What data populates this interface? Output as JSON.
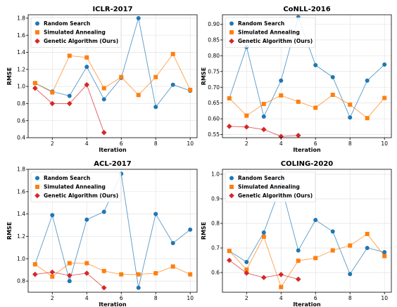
{
  "legend_location": "upper-left",
  "grid": true,
  "chart_data": [
    {
      "type": "line",
      "title": "ICLR-2017",
      "xlabel": "Iteration",
      "ylabel": "RMSE",
      "xlim": [
        0.6,
        10.4
      ],
      "ylim": [
        0.4,
        1.84
      ],
      "xticks": [
        2,
        4,
        6,
        8,
        10
      ],
      "yticks": [
        0.4,
        0.6,
        0.8,
        1.0,
        1.2,
        1.4,
        1.6,
        1.8
      ],
      "ytick_labels": [
        "0.4",
        "0.6",
        "0.8",
        "1.0",
        "1.2",
        "1.4",
        "1.6",
        "1.8"
      ],
      "series": [
        {
          "name": "Random Search",
          "color": "#1f77b4",
          "marker": "circle",
          "x": [
            1,
            2,
            3,
            4,
            5,
            6,
            7,
            8,
            9,
            10
          ],
          "values": [
            1.04,
            0.94,
            0.89,
            1.23,
            0.85,
            1.1,
            1.8,
            0.76,
            1.02,
            0.95
          ]
        },
        {
          "name": "Simulated Annealing",
          "color": "#ff7f0e",
          "marker": "square",
          "x": [
            1,
            2,
            3,
            4,
            5,
            6,
            7,
            8,
            9,
            10
          ],
          "values": [
            1.04,
            0.93,
            1.36,
            1.34,
            0.98,
            1.11,
            0.9,
            1.11,
            1.38,
            0.96
          ]
        },
        {
          "name": "Genetic Algorithm (Ours)",
          "color": "#d62728",
          "marker": "diamond",
          "x": [
            1,
            2,
            3,
            4,
            5
          ],
          "values": [
            0.98,
            0.8,
            0.8,
            1.02,
            0.46
          ]
        }
      ]
    },
    {
      "type": "line",
      "title": "CoNLL-2016",
      "xlabel": "Iteration",
      "ylabel": "RMSE",
      "xlim": [
        0.6,
        10.4
      ],
      "ylim": [
        0.54,
        0.93
      ],
      "xticks": [
        2,
        4,
        6,
        8,
        10
      ],
      "yticks": [
        0.55,
        0.6,
        0.65,
        0.7,
        0.75,
        0.8,
        0.85,
        0.9
      ],
      "ytick_labels": [
        "0.55",
        "0.60",
        "0.65",
        "0.70",
        "0.75",
        "0.80",
        "0.85",
        "0.90"
      ],
      "series": [
        {
          "name": "Random Search",
          "color": "#1f77b4",
          "marker": "circle",
          "x": [
            1,
            2,
            3,
            4,
            5,
            6,
            7,
            8,
            9,
            10
          ],
          "values": [
            0.665,
            0.828,
            0.607,
            0.721,
            0.922,
            0.77,
            0.732,
            0.604,
            0.721,
            0.772
          ]
        },
        {
          "name": "Simulated Annealing",
          "color": "#ff7f0e",
          "marker": "square",
          "x": [
            1,
            2,
            3,
            4,
            5,
            6,
            7,
            8,
            9,
            10
          ],
          "values": [
            0.665,
            0.61,
            0.647,
            0.674,
            0.654,
            0.635,
            0.676,
            0.645,
            0.602,
            0.666
          ]
        },
        {
          "name": "Genetic Algorithm (Ours)",
          "color": "#d62728",
          "marker": "diamond",
          "x": [
            1,
            2,
            3,
            4,
            5
          ],
          "values": [
            0.576,
            0.574,
            0.566,
            0.544,
            0.547
          ]
        }
      ]
    },
    {
      "type": "line",
      "title": "ACL-2017",
      "xlabel": "Iteration",
      "ylabel": "RMSE",
      "xlim": [
        0.6,
        10.4
      ],
      "ylim": [
        0.7,
        1.8
      ],
      "xticks": [
        2,
        4,
        6,
        8,
        10
      ],
      "yticks": [
        0.8,
        1.0,
        1.2,
        1.4,
        1.6,
        1.8
      ],
      "ytick_labels": [
        "0.8",
        "1.0",
        "1.2",
        "1.4",
        "1.6",
        "1.8"
      ],
      "series": [
        {
          "name": "Random Search",
          "color": "#1f77b4",
          "marker": "circle",
          "x": [
            1,
            2,
            3,
            4,
            5,
            6,
            7,
            8,
            9,
            10
          ],
          "values": [
            0.95,
            1.39,
            0.8,
            1.35,
            1.42,
            1.76,
            0.74,
            1.4,
            1.14,
            1.26
          ]
        },
        {
          "name": "Simulated Annealing",
          "color": "#ff7f0e",
          "marker": "square",
          "x": [
            1,
            2,
            3,
            4,
            5,
            6,
            7,
            8,
            9,
            10
          ],
          "values": [
            0.95,
            0.84,
            0.96,
            0.96,
            0.89,
            0.86,
            0.86,
            0.87,
            0.93,
            0.86
          ]
        },
        {
          "name": "Genetic Algorithm (Ours)",
          "color": "#d62728",
          "marker": "diamond",
          "x": [
            1,
            2,
            3,
            4,
            5
          ],
          "values": [
            0.86,
            0.88,
            0.85,
            0.87,
            0.74
          ]
        }
      ]
    },
    {
      "type": "line",
      "title": "COLING-2020",
      "xlabel": "Iteration",
      "ylabel": "RMSE",
      "xlim": [
        0.6,
        10.4
      ],
      "ylim": [
        0.52,
        1.02
      ],
      "xticks": [
        2,
        4,
        6,
        8,
        10
      ],
      "yticks": [
        0.6,
        0.7,
        0.8,
        0.9,
        1.0
      ],
      "ytick_labels": [
        "0.6",
        "0.7",
        "0.8",
        "0.9",
        "1.0"
      ],
      "series": [
        {
          "name": "Random Search",
          "color": "#1f77b4",
          "marker": "circle",
          "x": [
            1,
            2,
            3,
            4,
            5,
            6,
            7,
            8,
            9,
            10
          ],
          "values": [
            0.688,
            0.643,
            0.763,
            0.955,
            0.69,
            0.814,
            0.767,
            0.594,
            0.7,
            0.683
          ]
        },
        {
          "name": "Simulated Annealing",
          "color": "#ff7f0e",
          "marker": "square",
          "x": [
            1,
            2,
            3,
            4,
            5,
            6,
            7,
            8,
            9,
            10
          ],
          "values": [
            0.688,
            0.612,
            0.746,
            0.541,
            0.648,
            0.659,
            0.69,
            0.71,
            0.757,
            0.667
          ]
        },
        {
          "name": "Genetic Algorithm (Ours)",
          "color": "#d62728",
          "marker": "diamond",
          "x": [
            1,
            2,
            3,
            4,
            5
          ],
          "values": [
            0.65,
            0.598,
            0.58,
            0.592,
            0.573
          ]
        }
      ]
    }
  ]
}
